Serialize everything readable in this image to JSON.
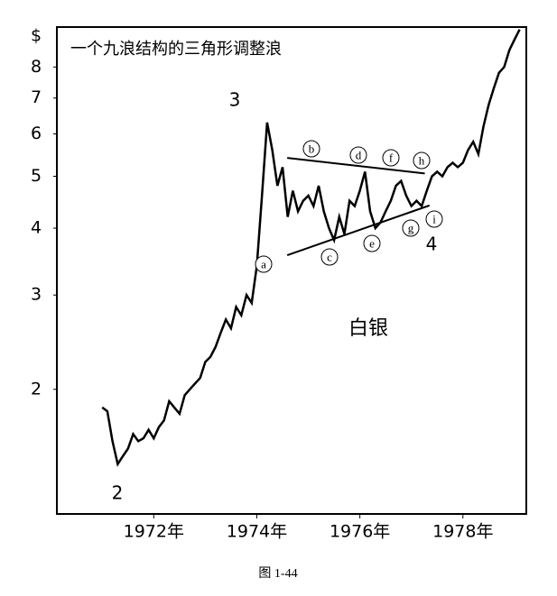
{
  "chart_data": {
    "type": "line",
    "title": "一个九浪结构的三角形调整浪",
    "y_axis_label": "$",
    "caption": "图 1-44",
    "series_label": "白银",
    "log_scale": true,
    "x": [
      1971.0,
      1971.1,
      1971.2,
      1971.3,
      1971.4,
      1971.5,
      1971.6,
      1971.7,
      1971.8,
      1971.9,
      1972.0,
      1972.1,
      1972.2,
      1972.3,
      1972.4,
      1972.5,
      1972.6,
      1972.7,
      1972.8,
      1972.9,
      1973.0,
      1973.1,
      1973.2,
      1973.3,
      1973.4,
      1973.5,
      1973.6,
      1973.7,
      1973.8,
      1973.9,
      1974.0,
      1974.1,
      1974.2,
      1974.3,
      1974.4,
      1974.5,
      1974.6,
      1974.7,
      1974.8,
      1974.9,
      1975.0,
      1975.1,
      1975.2,
      1975.3,
      1975.4,
      1975.5,
      1975.6,
      1975.7,
      1975.8,
      1975.9,
      1976.0,
      1976.1,
      1976.2,
      1976.3,
      1976.4,
      1976.5,
      1976.6,
      1976.7,
      1976.8,
      1976.9,
      1977.0,
      1977.1,
      1977.2,
      1977.3,
      1977.4,
      1977.5,
      1977.6,
      1977.7,
      1977.8,
      1977.9,
      1978.0,
      1978.1,
      1978.2,
      1978.3,
      1978.4,
      1978.5,
      1978.6,
      1978.7,
      1978.8,
      1978.9,
      1979.0,
      1979.1
    ],
    "series": [
      {
        "color": "#000000",
        "values": [
          1.85,
          1.82,
          1.6,
          1.45,
          1.5,
          1.55,
          1.65,
          1.6,
          1.62,
          1.68,
          1.62,
          1.7,
          1.75,
          1.9,
          1.85,
          1.8,
          1.95,
          2.0,
          2.05,
          2.1,
          2.25,
          2.3,
          2.4,
          2.55,
          2.7,
          2.6,
          2.85,
          2.75,
          3.0,
          2.9,
          3.4,
          4.6,
          6.3,
          5.6,
          4.8,
          5.2,
          4.2,
          4.7,
          4.3,
          4.5,
          4.6,
          4.4,
          4.8,
          4.3,
          4.0,
          3.8,
          4.2,
          3.9,
          4.5,
          4.4,
          4.7,
          5.1,
          4.3,
          4.0,
          4.1,
          4.3,
          4.5,
          4.8,
          4.9,
          4.6,
          4.4,
          4.5,
          4.4,
          4.7,
          5.0,
          5.1,
          5.0,
          5.2,
          5.3,
          5.2,
          5.3,
          5.6,
          5.8,
          5.5,
          6.2,
          6.8,
          7.3,
          7.8,
          8.0,
          8.6,
          9.0,
          9.4
        ]
      }
    ],
    "trendlines": [
      {
        "x": [
          1974.59,
          1977.26
        ],
        "y": [
          5.41,
          5.06
        ]
      },
      {
        "x": [
          1974.59,
          1977.35
        ],
        "y": [
          3.56,
          4.41
        ]
      }
    ],
    "wave_labels": [
      "2",
      "3",
      "4"
    ],
    "sub_wave_labels": [
      "a",
      "b",
      "c",
      "d",
      "e",
      "f",
      "g",
      "h",
      "i"
    ],
    "xlim": [
      1970.12,
      1979.23
    ],
    "ylim": [
      1.17,
      9.5
    ],
    "xticks": [
      {
        "value": 1972,
        "label": "1972年"
      },
      {
        "value": 1974,
        "label": "1974年"
      },
      {
        "value": 1976,
        "label": "1976年"
      },
      {
        "value": 1978,
        "label": "1978年"
      }
    ],
    "yticks": [
      2,
      3,
      4,
      5,
      6,
      7,
      8
    ]
  }
}
